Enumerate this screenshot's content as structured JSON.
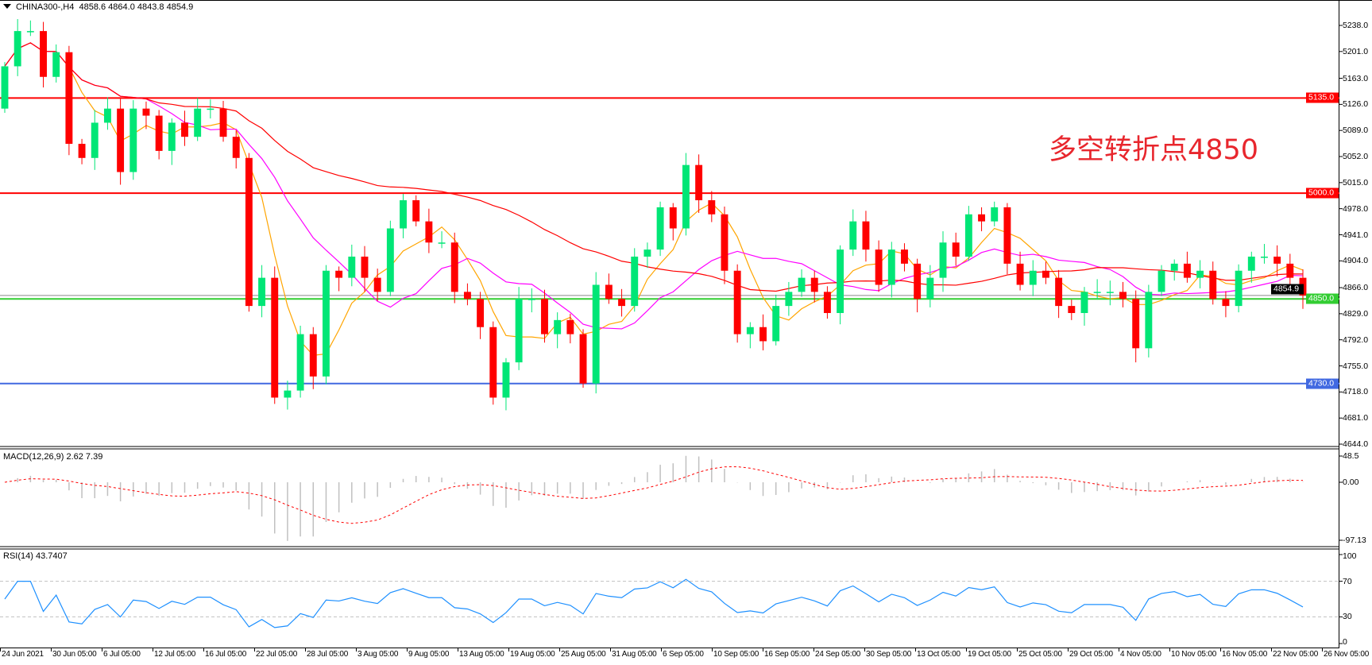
{
  "header": {
    "symbol_timeframe": "CHINA300-,H4",
    "ohlc": "4858.6 4864.0 4843.8 4854.9"
  },
  "annotation": "多空转折点4850",
  "colors": {
    "bull": "#00e676",
    "bear": "#ff0000",
    "ma_fast": "#ffa500",
    "ma_mid": "#ff00ff",
    "ma_slow": "#ff0000",
    "level_red": "#ff0000",
    "level_green": "#32cd32",
    "level_blue": "#4169e1",
    "rsi": "#1e90ff",
    "macd_hist": "#c0c0c0",
    "macd_signal": "#ff0000"
  },
  "chart_data": [
    {
      "type": "candlestick",
      "title": "CHINA300-,H4",
      "ylim": [
        4644.0,
        5238.0
      ],
      "y_ticks": [
        "5238.0",
        "5201.0",
        "5163.0",
        "5126.0",
        "5089.0",
        "5052.0",
        "5015.0",
        "4978.0",
        "4941.0",
        "4904.0",
        "4866.0",
        "4829.0",
        "4792.0",
        "4755.0",
        "4718.0",
        "4681.0",
        "4644.0"
      ],
      "x_ticks": [
        "24 Jun 2021",
        "30 Jun 05:00",
        "6 Jul 05:00",
        "12 Jul 05:00",
        "16 Jul 05:00",
        "22 Jul 05:00",
        "28 Jul 05:00",
        "3 Aug 05:00",
        "9 Aug 05:00",
        "13 Aug 05:00",
        "19 Aug 05:00",
        "25 Aug 05:00",
        "31 Aug 05:00",
        "6 Sep 05:00",
        "10 Sep 05:00",
        "16 Sep 05:00",
        "24 Sep 05:00",
        "30 Sep 05:00",
        "13 Oct 05:00",
        "19 Oct 05:00",
        "25 Oct 05:00",
        "29 Oct 05:00",
        "4 Nov 05:00",
        "10 Nov 05:00",
        "16 Nov 05:00",
        "22 Nov 05:00",
        "26 Nov 05:00"
      ],
      "close": [
        5180,
        5230,
        5230,
        5165,
        5200,
        5070,
        5050,
        5100,
        5120,
        5030,
        5120,
        5110,
        5060,
        5100,
        5080,
        5120,
        5120,
        5080,
        5050,
        4840,
        4880,
        4710,
        4720,
        4800,
        4740,
        4890,
        4880,
        4910,
        4880,
        4860,
        4950,
        4990,
        4960,
        4930,
        4930,
        4860,
        4850,
        4810,
        4710,
        4760,
        4850,
        4850,
        4800,
        4820,
        4800,
        4730,
        4870,
        4850,
        4840,
        4910,
        4920,
        4980,
        4950,
        5040,
        4990,
        4970,
        4890,
        4800,
        4810,
        4790,
        4840,
        4860,
        4880,
        4860,
        4830,
        4920,
        4960,
        4920,
        4870,
        4920,
        4900,
        4850,
        4880,
        4930,
        4910,
        4970,
        4960,
        4980,
        4900,
        4870,
        4890,
        4880,
        4840,
        4830,
        4860,
        4860,
        4860,
        4850,
        4780,
        4860,
        4890,
        4900,
        4880,
        4890,
        4850,
        4840,
        4890,
        4910,
        4910,
        4900,
        4880,
        4854.9
      ],
      "first_open": 5120,
      "levels": [
        {
          "value": 5135.0,
          "label": "5135.0",
          "color": "#ff0000"
        },
        {
          "value": 5000.0,
          "label": "5000.0",
          "color": "#ff0000"
        },
        {
          "value": 4850.0,
          "label": "4850.0",
          "color": "#32cd32"
        },
        {
          "value": 4730.0,
          "label": "4730.0",
          "color": "#4169e1"
        }
      ],
      "current_price": {
        "value": 4854.9,
        "label": "4854.9"
      },
      "moving_averages": [
        "orange fast",
        "magenta medium",
        "red slow"
      ]
    },
    {
      "type": "bar+line",
      "title": "MACD(12,26,9) 2.62 7.39",
      "ylim": [
        -97.13,
        48.5
      ],
      "y_ticks": [
        "48.5",
        "0.00",
        "-97.13"
      ]
    },
    {
      "type": "line",
      "title": "RSI(14) 43.7407",
      "ylim": [
        0,
        100
      ],
      "y_ticks": [
        "100",
        "70",
        "30",
        "0"
      ],
      "reference_lines": [
        70,
        30
      ]
    }
  ]
}
